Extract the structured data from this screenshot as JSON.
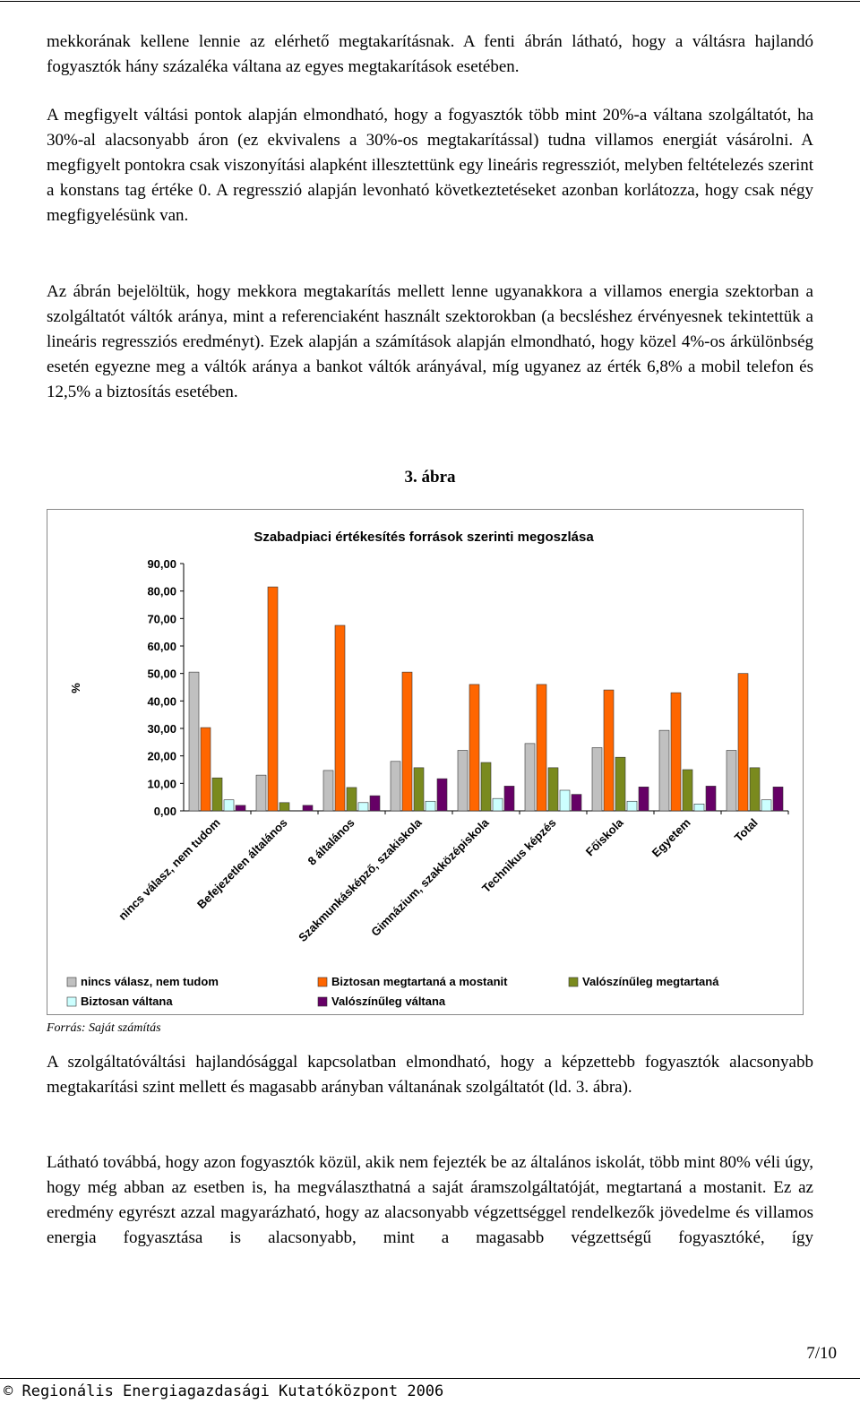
{
  "paragraphs": [
    "mekkorának kellene lennie az elérhető megtakarításnak. A fenti ábrán látható, hogy a váltásra hajlandó fogyasztók hány százaléka váltana az egyes megtakarítások esetében.",
    "A megfigyelt váltási pontok alapján elmondható, hogy a fogyasztók több mint 20%-a váltana szolgáltatót, ha 30%-al alacsonyabb áron (ez ekvivalens a 30%-os megtakarítással) tudna villamos energiát vásárolni. A megfigyelt pontokra csak viszonyítási alapként illesztettünk egy lineáris regressziót, melyben feltételezés szerint a konstans tag értéke 0. A regresszió alapján levonható következtetéseket azonban korlátozza, hogy csak négy megfigyelésünk van.",
    "Az ábrán bejelöltük, hogy mekkora megtakarítás mellett lenne ugyanakkora a villamos energia szektorban a szolgáltatót váltók aránya, mint a referenciaként használt szektorokban (a becsléshez érvényesnek tekintettük a lineáris regressziós eredményt). Ezek alapján a számítások alapján elmondható, hogy közel 4%-os árkülönbség esetén egyezne meg a váltók aránya a bankot váltók arányával, míg ugyanez az érték 6,8% a mobil telefon és 12,5% a biztosítás esetében."
  ],
  "figure_caption": "3. ábra",
  "chart_data": {
    "type": "bar",
    "title": "Szabadpiaci értékesítés források szerinti megoszlása",
    "y_label": "%",
    "categories": [
      "nincs válasz, nem tudom",
      "Befejezetlen általános",
      "8 általános",
      "Szakmunkásképző, szakiskola",
      "Gimnázium, szakközépiskola",
      "Technikus képzés",
      "Főiskola",
      "Egyetem",
      "Total"
    ],
    "series": [
      {
        "name": "nincs válasz, nem tudom",
        "color": "#c0c0c0",
        "values": [
          50.5,
          13,
          14.7,
          18,
          22,
          24.5,
          23,
          29.3,
          22
        ]
      },
      {
        "name": "Biztosan megtartaná a mostanit",
        "color": "#ff6600",
        "values": [
          30.3,
          81.5,
          67.5,
          50.5,
          46,
          46,
          44,
          43,
          50
        ]
      },
      {
        "name": "Valószínűleg megtartaná",
        "color": "#7a8a1e",
        "values": [
          12,
          3,
          8.5,
          15.7,
          17.6,
          15.7,
          19.5,
          15,
          15.7
        ]
      },
      {
        "name": "Biztosan váltana",
        "color": "#ccffff",
        "values": [
          4,
          0,
          3,
          3.5,
          4.5,
          7.5,
          3.5,
          2.5,
          4
        ]
      },
      {
        "name": "Valószínűleg váltana",
        "color": "#660066",
        "values": [
          2,
          2,
          5.5,
          11.7,
          9,
          6,
          8.7,
          9,
          8.7
        ]
      }
    ],
    "ylim": [
      0,
      90
    ],
    "yticks": [
      {
        "value": 0,
        "label": "0,00"
      },
      {
        "value": 10,
        "label": "10,00"
      },
      {
        "value": 20,
        "label": "20,00"
      },
      {
        "value": 30,
        "label": "30,00"
      },
      {
        "value": 40,
        "label": "40,00"
      },
      {
        "value": 50,
        "label": "50,00"
      },
      {
        "value": 60,
        "label": "60,00"
      },
      {
        "value": 70,
        "label": "70,00"
      },
      {
        "value": 80,
        "label": "80,00"
      },
      {
        "value": 90,
        "label": "90,00"
      }
    ],
    "grid": false,
    "legend": "bottom"
  },
  "source": "Forrás: Saját számítás",
  "paragraphs_after": [
    "A szolgáltatóváltási hajlandósággal kapcsolatban elmondható, hogy a képzettebb fogyasztók alacsonyabb megtakarítási szint mellett és magasabb arányban váltanának szolgáltatót (ld. 3. ábra).",
    "Látható továbbá, hogy azon fogyasztók közül, akik nem fejezték be az általános iskolát, több mint 80% véli úgy, hogy még abban az esetben is, ha megválaszthatná a saját áramszolgáltatóját, megtartaná a mostanit. Ez az eredmény egyrészt azzal magyarázható, hogy az alacsonyabb végzettséggel rendelkezők jövedelme és villamos energia fogyasztása is alacsonyabb, mint a magasabb végzettségű fogyasztóké, így"
  ],
  "page_number": "7/10",
  "footer": "© Regionális Energiagazdasági Kutatóközpont 2006"
}
